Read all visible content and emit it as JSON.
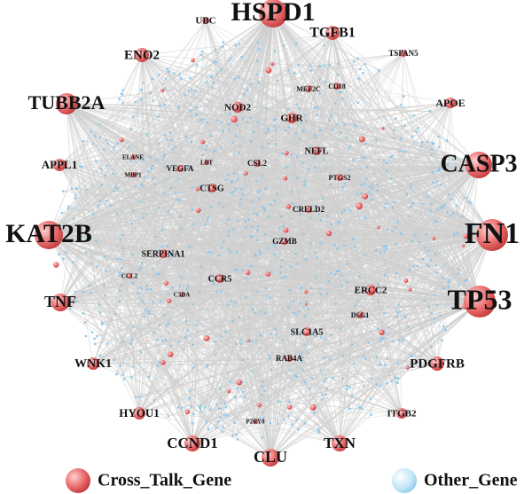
{
  "nodes": [
    "HSPD1",
    "UBC",
    "TGFB1",
    "TSPAN5",
    "ENO2",
    "MEF2C",
    "CD18",
    "APOE",
    "TUBB2A",
    "NOD2",
    "GHR",
    "ELANE",
    "MBP1",
    "APPL1",
    "LBT",
    "VEGFA",
    "CSL2",
    "NEFL",
    "PTGS2",
    "CASP3",
    "CTSG",
    "CRELD2",
    "KAT2B",
    "GZMB",
    "FN1",
    "SERPINA1",
    "CCL2",
    "CCR5",
    "C3DA",
    "ERCC2",
    "TP53",
    "TNF",
    "DSG1",
    "SLC1A5",
    "WNK1",
    "RAB4A",
    "PDGFRB",
    "HYOU1",
    "ITGB2",
    "P2RY8",
    "CCND1",
    "TXN",
    "CLU"
  ],
  "legend": [
    "Cross_Talk_Gene",
    "Other_Gene"
  ]
}
